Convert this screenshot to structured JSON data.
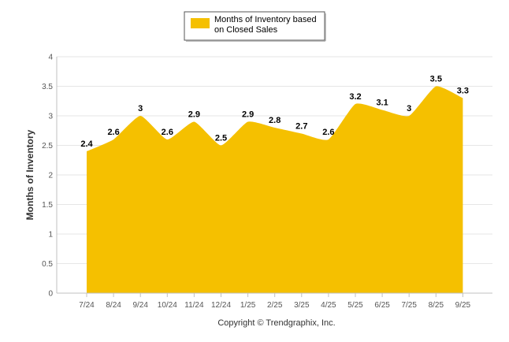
{
  "chart_data": {
    "type": "area",
    "title": "",
    "xlabel": "",
    "ylabel": "Months of Inventory",
    "ylim": [
      0,
      4
    ],
    "yticks": [
      "0",
      "0.5",
      "1",
      "1.5",
      "2",
      "2.5",
      "3",
      "3.5",
      "4"
    ],
    "categories": [
      "7/24",
      "8/24",
      "9/24",
      "10/24",
      "11/24",
      "12/24",
      "1/25",
      "2/25",
      "3/25",
      "4/25",
      "5/25",
      "6/25",
      "7/25",
      "8/25",
      "9/25"
    ],
    "series": [
      {
        "name": "Months of Inventory based on Closed Sales",
        "values": [
          2.4,
          2.6,
          3,
          2.6,
          2.9,
          2.5,
          2.9,
          2.8,
          2.7,
          2.6,
          3.2,
          3.1,
          3,
          3.5,
          3.3
        ],
        "color": "#F5C000"
      }
    ],
    "legend": {
      "position": "top-center",
      "lines": [
        "Months of Inventory based",
        "on Closed Sales"
      ]
    },
    "grid": true
  },
  "footer": {
    "copyright": "Copyright © Trendgraphix, Inc."
  }
}
